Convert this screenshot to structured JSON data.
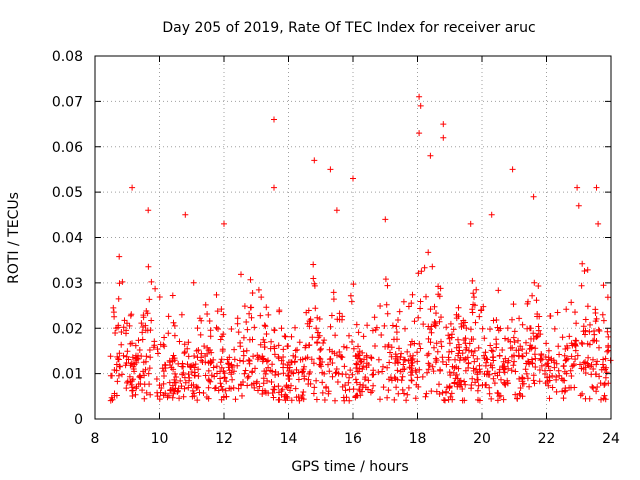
{
  "chart_data": {
    "type": "scatter",
    "title": "Day 205 of 2019, Rate Of TEC Index for receiver aruc",
    "xlabel": "GPS time / hours",
    "ylabel": "ROTI / TECUs",
    "xlim": [
      8,
      24
    ],
    "ylim": [
      0,
      0.08
    ],
    "x_ticks": [
      8,
      10,
      12,
      14,
      16,
      18,
      20,
      22,
      24
    ],
    "x_tick_labels": [
      "8",
      "10",
      "12",
      "14",
      "16",
      "18",
      "20",
      "22",
      "24"
    ],
    "y_ticks": [
      0,
      0.01,
      0.02,
      0.03,
      0.04,
      0.05,
      0.06,
      0.07,
      0.08
    ],
    "y_tick_labels": [
      "0",
      "0.01",
      "0.02",
      "0.03",
      "0.04",
      "0.05",
      "0.06",
      "0.07",
      "0.08"
    ],
    "grid": true,
    "marker": "+",
    "series": [
      {
        "name": "ROTI",
        "color": "#ff0000",
        "x_range": [
          8.45,
          24.0
        ],
        "typical_range": [
          0.003,
          0.03
        ],
        "notable_points": [
          [
            9.15,
            0.051
          ],
          [
            9.65,
            0.046
          ],
          [
            10.8,
            0.045
          ],
          [
            12.0,
            0.043
          ],
          [
            13.55,
            0.066
          ],
          [
            13.55,
            0.051
          ],
          [
            14.8,
            0.057
          ],
          [
            15.3,
            0.055
          ],
          [
            15.5,
            0.046
          ],
          [
            16.0,
            0.053
          ],
          [
            17.0,
            0.044
          ],
          [
            18.05,
            0.071
          ],
          [
            18.1,
            0.069
          ],
          [
            18.05,
            0.063
          ],
          [
            18.4,
            0.058
          ],
          [
            18.8,
            0.065
          ],
          [
            18.8,
            0.062
          ],
          [
            19.65,
            0.043
          ],
          [
            20.3,
            0.045
          ],
          [
            20.95,
            0.055
          ],
          [
            21.6,
            0.049
          ],
          [
            22.95,
            0.051
          ],
          [
            23.0,
            0.047
          ],
          [
            23.55,
            0.051
          ],
          [
            23.6,
            0.043
          ]
        ]
      }
    ]
  }
}
